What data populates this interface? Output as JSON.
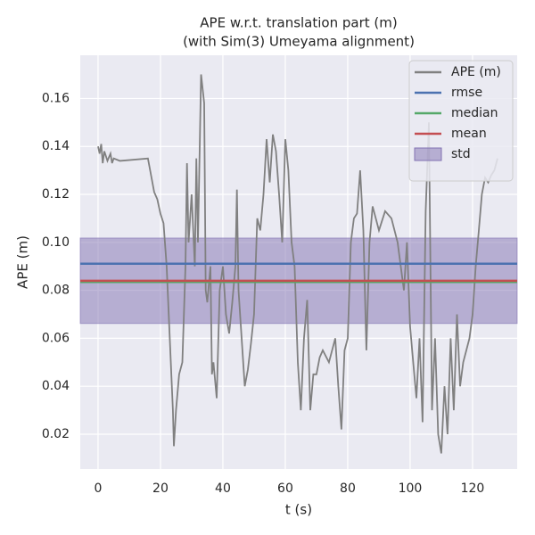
{
  "chart_data": {
    "type": "line",
    "title": "APE w.r.t. translation part (m)",
    "subtitle": "(with Sim(3) Umeyama alignment)",
    "x_label": "t (s)",
    "y_label": "APE (m)",
    "xlim": [
      -5.7,
      134.3
    ],
    "ylim": [
      0.0055,
      0.178
    ],
    "xticks": [
      0,
      20,
      40,
      60,
      80,
      100,
      120
    ],
    "yticks": [
      0.02,
      0.04,
      0.06,
      0.08,
      {
        "value": 0.1,
        "label": "0.10"
      },
      0.12,
      0.14,
      0.16
    ],
    "grid": true,
    "legend": "upper right",
    "series": [
      {
        "name": "APE (m)",
        "color": "#808080",
        "x": [
          0,
          0.5,
          1,
          1.5,
          2,
          3,
          4,
          4.5,
          5,
          7,
          16,
          17,
          18,
          19,
          20,
          21,
          22,
          23,
          24,
          24.3,
          25,
          26,
          27,
          28,
          28.5,
          29,
          30,
          31,
          31.5,
          32,
          33,
          34,
          34.5,
          35,
          36,
          36.5,
          37,
          38,
          39,
          40,
          41,
          42,
          43,
          44,
          44.5,
          45,
          46,
          47,
          48,
          49,
          50,
          51,
          52,
          53,
          54,
          55,
          56,
          57,
          58,
          59,
          60,
          61,
          62,
          63,
          64,
          65,
          66,
          67,
          68,
          69,
          70,
          71,
          72,
          74,
          76,
          77,
          78,
          79,
          80,
          81,
          82,
          83,
          84,
          85,
          86,
          87,
          88,
          90,
          92,
          94,
          96,
          98,
          99,
          100,
          101,
          102,
          103,
          104,
          105,
          106,
          107,
          108,
          109,
          110,
          111,
          112,
          113,
          114,
          115,
          116,
          117,
          118,
          119,
          120,
          121,
          122,
          123,
          124,
          125,
          126,
          127,
          128
        ],
        "values": [
          0.14,
          0.137,
          0.141,
          0.133,
          0.138,
          0.134,
          0.137,
          0.133,
          0.135,
          0.134,
          0.135,
          0.128,
          0.121,
          0.118,
          0.112,
          0.108,
          0.09,
          0.06,
          0.03,
          0.015,
          0.03,
          0.045,
          0.05,
          0.09,
          0.133,
          0.1,
          0.12,
          0.09,
          0.135,
          0.1,
          0.17,
          0.158,
          0.08,
          0.075,
          0.09,
          0.045,
          0.05,
          0.035,
          0.08,
          0.09,
          0.07,
          0.062,
          0.075,
          0.09,
          0.122,
          0.08,
          0.06,
          0.04,
          0.047,
          0.058,
          0.07,
          0.11,
          0.105,
          0.12,
          0.143,
          0.125,
          0.145,
          0.138,
          0.12,
          0.1,
          0.143,
          0.13,
          0.1,
          0.09,
          0.05,
          0.03,
          0.06,
          0.076,
          0.03,
          0.045,
          0.045,
          0.052,
          0.055,
          0.05,
          0.06,
          0.04,
          0.022,
          0.055,
          0.06,
          0.1,
          0.11,
          0.112,
          0.13,
          0.105,
          0.055,
          0.1,
          0.115,
          0.105,
          0.113,
          0.11,
          0.1,
          0.08,
          0.1,
          0.065,
          0.05,
          0.035,
          0.06,
          0.025,
          0.113,
          0.15,
          0.03,
          0.06,
          0.02,
          0.012,
          0.04,
          0.02,
          0.06,
          0.03,
          0.07,
          0.04,
          0.05,
          0.055,
          0.06,
          0.07,
          0.09,
          0.105,
          0.12,
          0.127,
          0.125,
          0.128,
          0.13,
          0.135
        ]
      }
    ],
    "stats": [
      {
        "name": "rmse",
        "color": "#4c72b0",
        "value": 0.0911
      },
      {
        "name": "median",
        "color": "#55a868",
        "value": 0.0835
      },
      {
        "name": "mean",
        "color": "#c44e52",
        "value": 0.084
      },
      {
        "name": "std",
        "color": "#8172b2",
        "value": 0.0178
      }
    ]
  }
}
